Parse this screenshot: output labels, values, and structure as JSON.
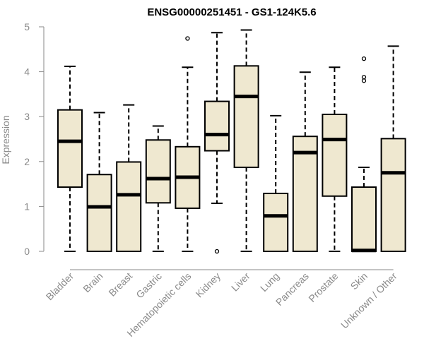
{
  "chart_data": {
    "type": "boxplot",
    "title": "ENSG00000251451 - GS1-124K5.6",
    "xlabel": "",
    "ylabel": "Expression",
    "ylim": [
      0,
      5
    ],
    "yticks": [
      0,
      1,
      2,
      3,
      4,
      5
    ],
    "grid": false,
    "colors": {
      "box_fill": "#efe8d0",
      "stroke": "#000000",
      "axis": "#8a8a8a"
    },
    "categories": [
      "Bladder",
      "Brain",
      "Breast",
      "Gastric",
      "Hematopoietic cells",
      "Kidney",
      "Liver",
      "Lung",
      "Pancreas",
      "Prostate",
      "Skin",
      "Unknown / Other"
    ],
    "boxes": [
      {
        "category": "Bladder",
        "min": 0.0,
        "q1": 1.43,
        "median": 2.45,
        "q3": 3.15,
        "max": 4.12,
        "outliers": []
      },
      {
        "category": "Brain",
        "min": 0.0,
        "q1": 0.0,
        "median": 0.99,
        "q3": 1.71,
        "max": 3.09,
        "outliers": []
      },
      {
        "category": "Breast",
        "min": 0.0,
        "q1": 0.0,
        "median": 1.26,
        "q3": 1.99,
        "max": 3.26,
        "outliers": []
      },
      {
        "category": "Gastric",
        "min": 0.0,
        "q1": 1.08,
        "median": 1.62,
        "q3": 2.48,
        "max": 2.79,
        "outliers": []
      },
      {
        "category": "Hematopoietic cells",
        "min": 0.0,
        "q1": 0.96,
        "median": 1.65,
        "q3": 2.33,
        "max": 4.1,
        "outliers": [
          4.74
        ]
      },
      {
        "category": "Kidney",
        "min": 1.07,
        "q1": 2.24,
        "median": 2.6,
        "q3": 3.34,
        "max": 4.87,
        "outliers": [
          0.0
        ]
      },
      {
        "category": "Liver",
        "min": 0.0,
        "q1": 1.87,
        "median": 3.45,
        "q3": 4.13,
        "max": 4.93,
        "outliers": []
      },
      {
        "category": "Lung",
        "min": 0.0,
        "q1": 0.0,
        "median": 0.79,
        "q3": 1.29,
        "max": 3.02,
        "outliers": []
      },
      {
        "category": "Pancreas",
        "min": 0.0,
        "q1": 0.0,
        "median": 2.2,
        "q3": 2.56,
        "max": 3.99,
        "outliers": []
      },
      {
        "category": "Prostate",
        "min": 0.0,
        "q1": 1.23,
        "median": 2.49,
        "q3": 3.05,
        "max": 4.1,
        "outliers": []
      },
      {
        "category": "Skin",
        "min": 0.0,
        "q1": 0.0,
        "median": 0.02,
        "q3": 1.43,
        "max": 1.87,
        "outliers": [
          3.8,
          3.88,
          4.29
        ]
      },
      {
        "category": "Unknown / Other",
        "min": 0.0,
        "q1": 0.0,
        "median": 1.75,
        "q3": 2.51,
        "max": 4.57,
        "outliers": []
      }
    ]
  }
}
